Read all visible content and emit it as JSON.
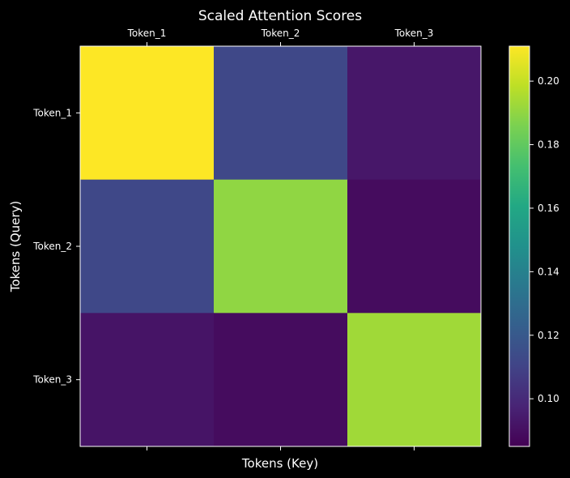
{
  "chart_data": {
    "type": "heatmap",
    "title": "Scaled Attention Scores",
    "xlabel": "Tokens (Key)",
    "ylabel": "Tokens (Query)",
    "x_categories": [
      "Token_1",
      "Token_2",
      "Token_3"
    ],
    "y_categories": [
      "Token_1",
      "Token_2",
      "Token_3"
    ],
    "x_tick_position": "top",
    "values": [
      [
        0.211,
        0.112,
        0.093
      ],
      [
        0.112,
        0.19,
        0.089
      ],
      [
        0.092,
        0.089,
        0.193
      ]
    ],
    "colormap": "viridis",
    "colorbar": {
      "range": [
        0.085,
        0.211
      ],
      "ticks": [
        0.1,
        0.12,
        0.14,
        0.16,
        0.18,
        0.2
      ],
      "tick_labels": [
        "0.10",
        "0.12",
        "0.14",
        "0.16",
        "0.18",
        "0.20"
      ]
    },
    "background": "#000000",
    "text_color": "#ffffff"
  }
}
